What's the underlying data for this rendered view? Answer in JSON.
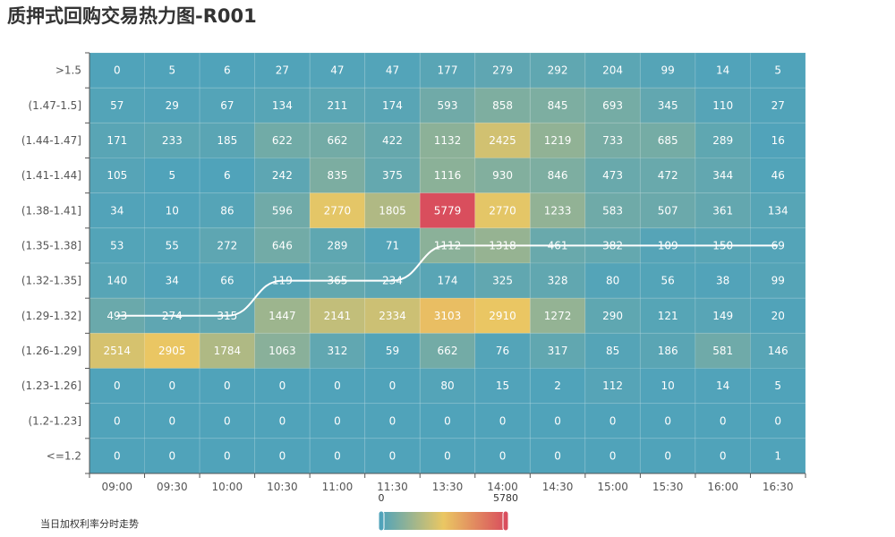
{
  "title": "质押式回购交易热力图-R001",
  "chart_data": {
    "type": "heatmap",
    "title": "质押式回购交易热力图-R001",
    "x_categories": [
      "09:00",
      "09:30",
      "10:00",
      "10:30",
      "11:00",
      "11:30",
      "13:30",
      "14:00",
      "14:30",
      "15:00",
      "15:30",
      "16:00",
      "16:30"
    ],
    "y_categories": [
      ">1.5",
      "(1.47-1.5]",
      "(1.44-1.47]",
      "(1.41-1.44]",
      "(1.38-1.41]",
      "(1.35-1.38]",
      "(1.32-1.35]",
      "(1.29-1.32]",
      "(1.26-1.29]",
      "(1.23-1.26]",
      "(1.2-1.23]",
      "<=1.2"
    ],
    "values": [
      [
        0,
        5,
        6,
        27,
        47,
        47,
        177,
        279,
        292,
        204,
        99,
        14,
        5
      ],
      [
        57,
        29,
        67,
        134,
        211,
        174,
        593,
        858,
        845,
        693,
        345,
        110,
        27
      ],
      [
        171,
        233,
        185,
        622,
        662,
        422,
        1132,
        2425,
        1219,
        733,
        685,
        289,
        16
      ],
      [
        105,
        5,
        6,
        242,
        835,
        375,
        1116,
        930,
        846,
        473,
        472,
        344,
        46
      ],
      [
        34,
        10,
        86,
        596,
        2770,
        1805,
        5779,
        2770,
        1233,
        583,
        507,
        361,
        134
      ],
      [
        53,
        55,
        272,
        646,
        289,
        71,
        1112,
        1318,
        461,
        382,
        109,
        150,
        69
      ],
      [
        140,
        34,
        66,
        119,
        365,
        234,
        174,
        325,
        328,
        80,
        56,
        38,
        99
      ],
      [
        493,
        274,
        315,
        1447,
        2141,
        2334,
        3103,
        2910,
        1272,
        290,
        121,
        149,
        20
      ],
      [
        2514,
        2905,
        1784,
        1063,
        312,
        59,
        662,
        76,
        317,
        85,
        186,
        581,
        146
      ],
      [
        0,
        0,
        0,
        0,
        0,
        0,
        80,
        15,
        2,
        112,
        10,
        14,
        5
      ],
      [
        0,
        0,
        0,
        0,
        0,
        0,
        0,
        0,
        0,
        0,
        0,
        0,
        0
      ],
      [
        0,
        0,
        0,
        0,
        0,
        0,
        0,
        0,
        0,
        0,
        0,
        0,
        1
      ]
    ],
    "visual_map": {
      "min": 0,
      "max": 5780,
      "min_label": "0",
      "max_label": "5780",
      "colors": [
        "#50a3ba",
        "#eac763",
        "#d94e5d"
      ]
    },
    "trend_line": {
      "name": "当日加权利率分时走势",
      "color": "#ffffff",
      "points": [
        {
          "x": "09:00",
          "y": "(1.29-1.32]"
        },
        {
          "x": "09:30",
          "y": "(1.29-1.32]"
        },
        {
          "x": "10:00",
          "y": "(1.29-1.32]"
        },
        {
          "x": "10:30",
          "y": "(1.32-1.35]"
        },
        {
          "x": "11:00",
          "y": "(1.32-1.35]"
        },
        {
          "x": "11:30",
          "y": "(1.32-1.35]"
        },
        {
          "x": "13:30",
          "y": "(1.35-1.38]"
        },
        {
          "x": "14:00",
          "y": "(1.35-1.38]"
        },
        {
          "x": "14:30",
          "y": "(1.35-1.38]"
        },
        {
          "x": "15:00",
          "y": "(1.35-1.38]"
        },
        {
          "x": "15:30",
          "y": "(1.35-1.38]"
        },
        {
          "x": "16:00",
          "y": "(1.35-1.38]"
        },
        {
          "x": "16:30",
          "y": "(1.35-1.38]"
        }
      ]
    }
  }
}
